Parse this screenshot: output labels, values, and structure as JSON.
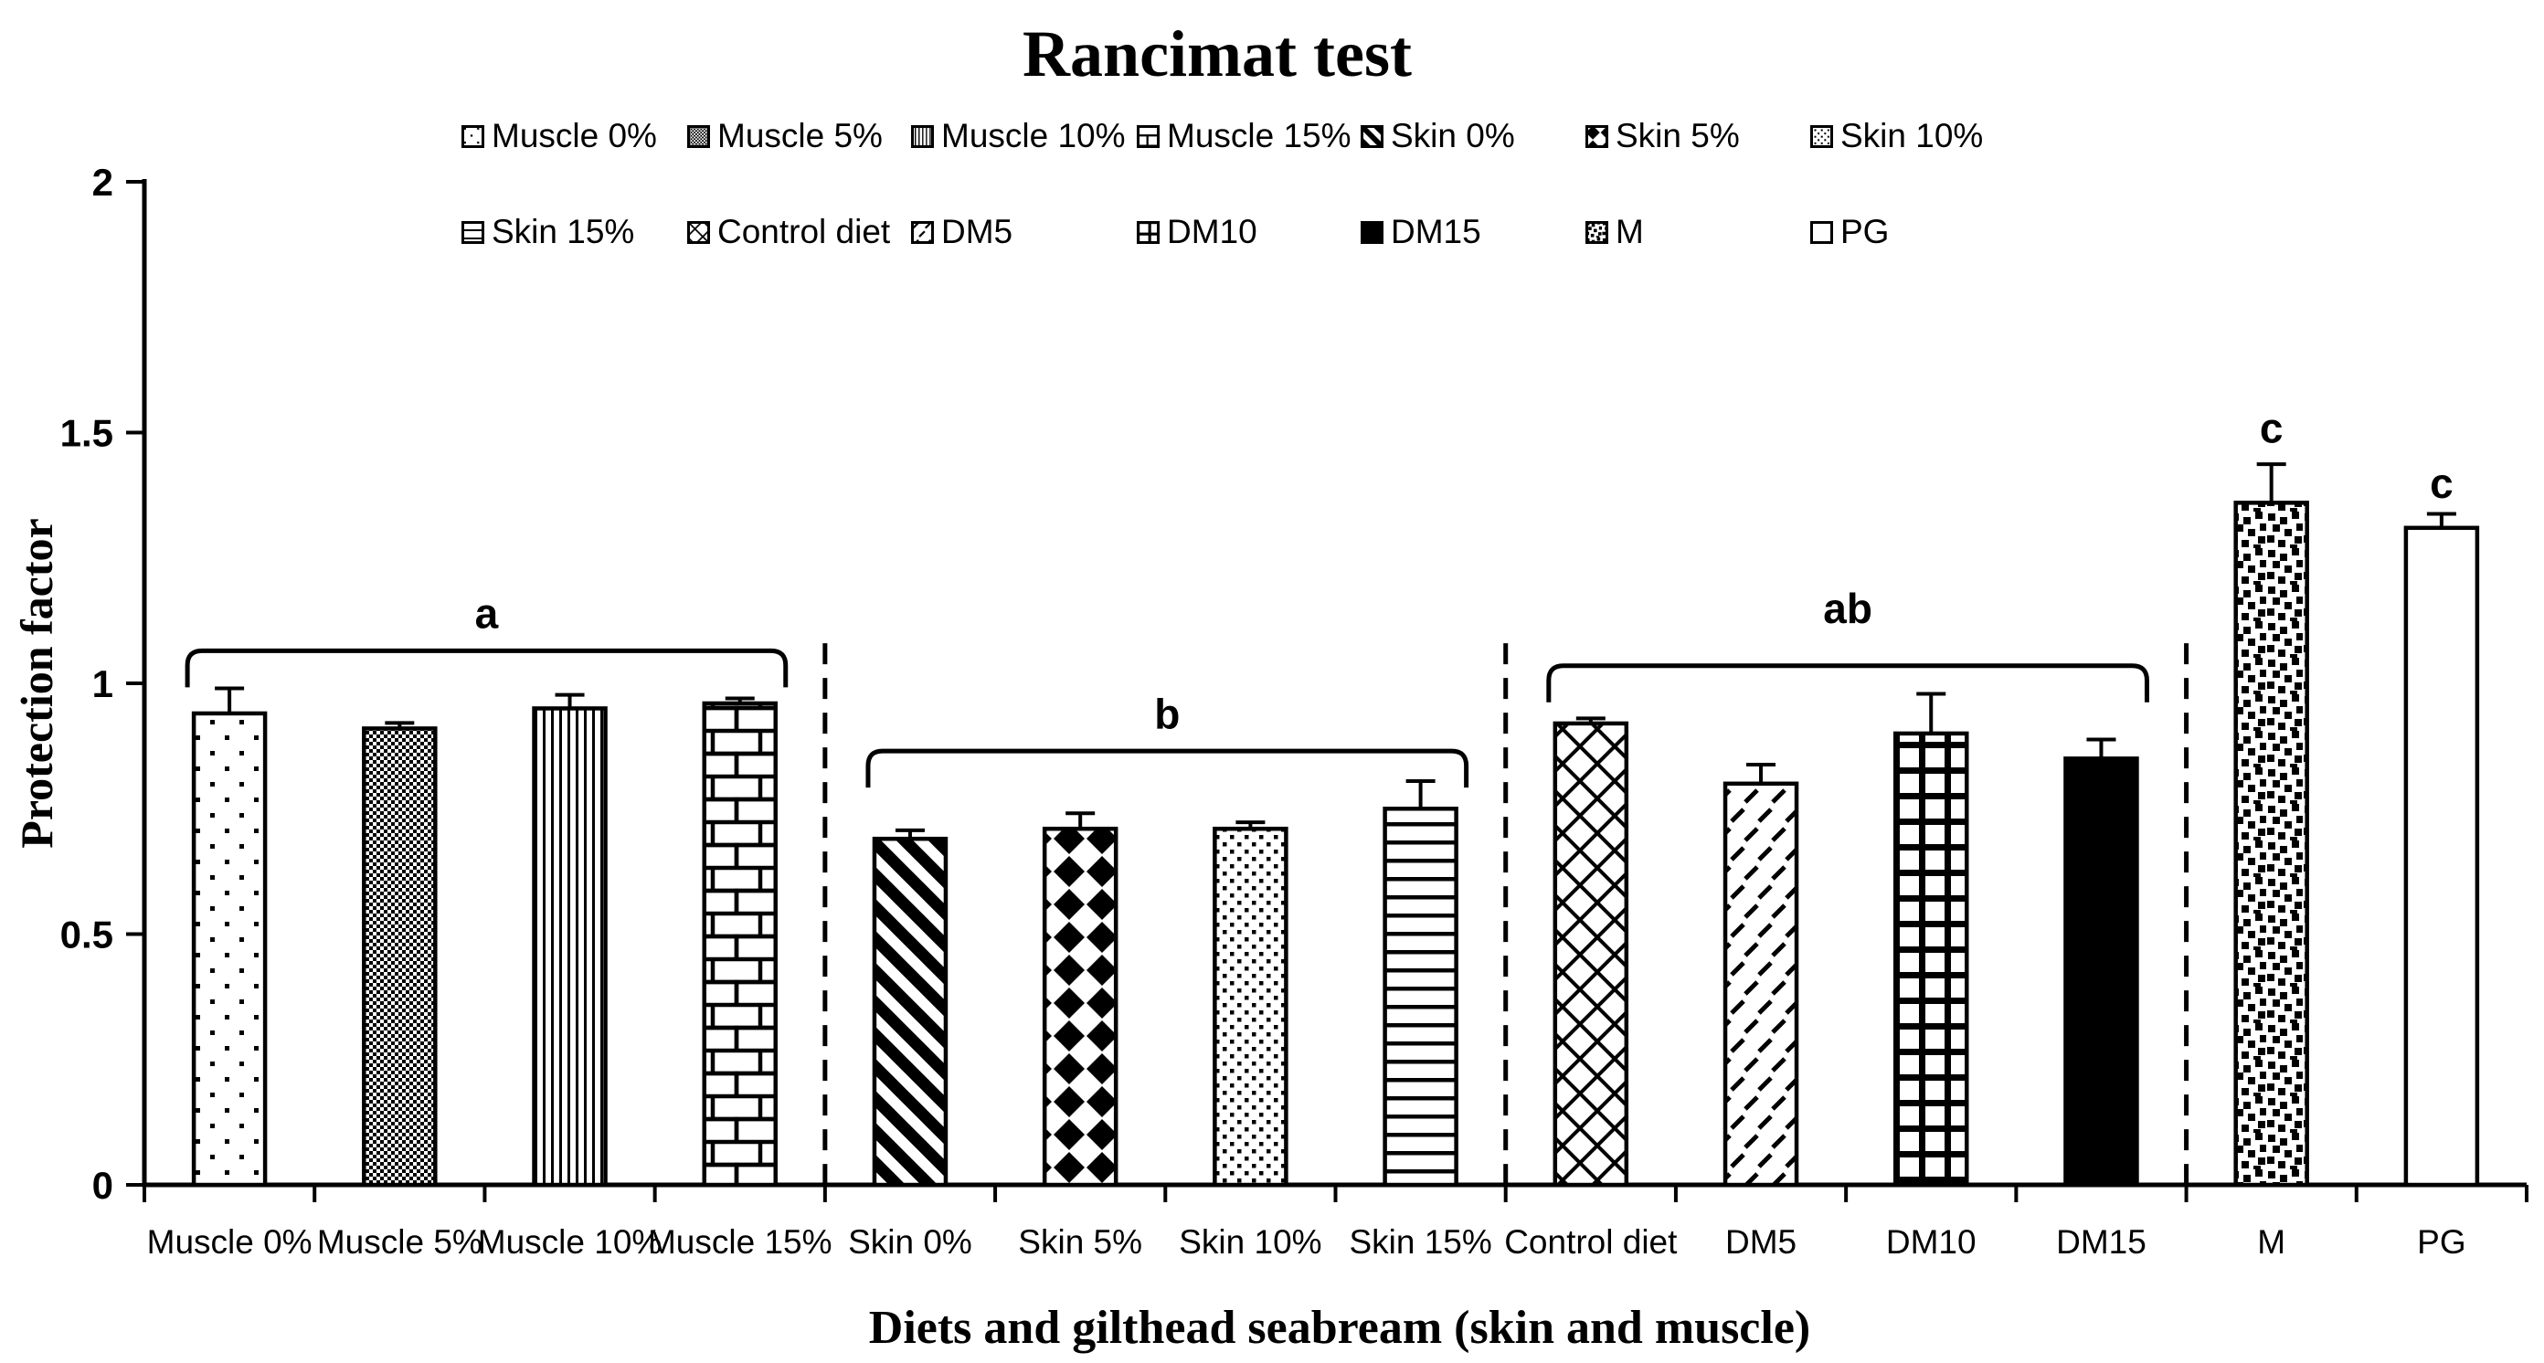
{
  "title": "Rancimat test",
  "axes": {
    "y_label": "Protection factor",
    "x_label": "Diets and gilthead seabream (skin and muscle)",
    "y_min": 0,
    "y_max": 2,
    "y_tick_step": 0.5,
    "y_tick_labels": [
      "0",
      "0.5",
      "1",
      "1.5",
      "2"
    ]
  },
  "colors": {
    "ink": "#000000",
    "paper": "#ffffff"
  },
  "chart_data": {
    "type": "bar",
    "title": "Rancimat test",
    "xlabel": "Diets and gilthead seabream (skin and muscle)",
    "ylabel": "Protection factor",
    "ylim": [
      0,
      2
    ],
    "y_ticks": [
      0,
      0.5,
      1,
      1.5,
      2
    ],
    "grid": false,
    "legend_position": "top",
    "categories": [
      "Muscle 0%",
      "Muscle 5%",
      "Muscle 10%",
      "Muscle 15%",
      "Skin 0%",
      "Skin 5%",
      "Skin 10%",
      "Skin 15%",
      "Control diet",
      "DM5",
      "DM10",
      "DM15",
      "M",
      "PG"
    ],
    "values": [
      0.94,
      0.91,
      0.95,
      0.96,
      0.69,
      0.71,
      0.71,
      0.75,
      0.92,
      0.8,
      0.9,
      0.85,
      1.36,
      1.31
    ],
    "errors": [
      0.05,
      0.011,
      0.027,
      0.01,
      0.017,
      0.031,
      0.013,
      0.055,
      0.01,
      0.038,
      0.079,
      0.038,
      0.077,
      0.028
    ],
    "patterns": [
      "dots-sparse",
      "checker-fine",
      "vlines",
      "brick",
      "diag-wide",
      "diamonds",
      "dots-dense",
      "hlines",
      "crosshatch",
      "dash-diag",
      "grid",
      "solid",
      "confetti",
      "plain"
    ],
    "separators": [
      {
        "after_index": 3,
        "top": 1.08
      },
      {
        "after_index": 7,
        "top": 1.08
      },
      {
        "after_index": 11,
        "top": 1.08
      }
    ],
    "significance": [
      {
        "label": "a",
        "from": 0,
        "to": 3,
        "bracket_y": 1.065,
        "label_y": 1.11
      },
      {
        "label": "b",
        "from": 4,
        "to": 7,
        "bracket_y": 0.865,
        "label_y": 0.91
      },
      {
        "label": "ab",
        "from": 8,
        "to": 11,
        "bracket_y": 1.035,
        "label_y": 1.12
      },
      {
        "label": "c",
        "bar": 12,
        "label_y": 1.48
      },
      {
        "label": "c",
        "bar": 13,
        "label_y": 1.37
      }
    ]
  },
  "legend": {
    "items": [
      {
        "label": "Muscle 0%",
        "pattern": "dots-sparse"
      },
      {
        "label": "Muscle 5%",
        "pattern": "checker-fine"
      },
      {
        "label": "Muscle 10%",
        "pattern": "vlines"
      },
      {
        "label": "Muscle 15%",
        "pattern": "brick"
      },
      {
        "label": "Skin 0%",
        "pattern": "diag-wide"
      },
      {
        "label": "Skin 5%",
        "pattern": "diamonds"
      },
      {
        "label": "Skin 10%",
        "pattern": "dots-dense"
      },
      {
        "label": "Skin 15%",
        "pattern": "hlines"
      },
      {
        "label": "Control diet",
        "pattern": "crosshatch"
      },
      {
        "label": "DM5",
        "pattern": "dash-diag"
      },
      {
        "label": "DM10",
        "pattern": "grid"
      },
      {
        "label": "DM15",
        "pattern": "solid"
      },
      {
        "label": "M",
        "pattern": "confetti"
      },
      {
        "label": "PG",
        "pattern": "plain"
      }
    ]
  }
}
